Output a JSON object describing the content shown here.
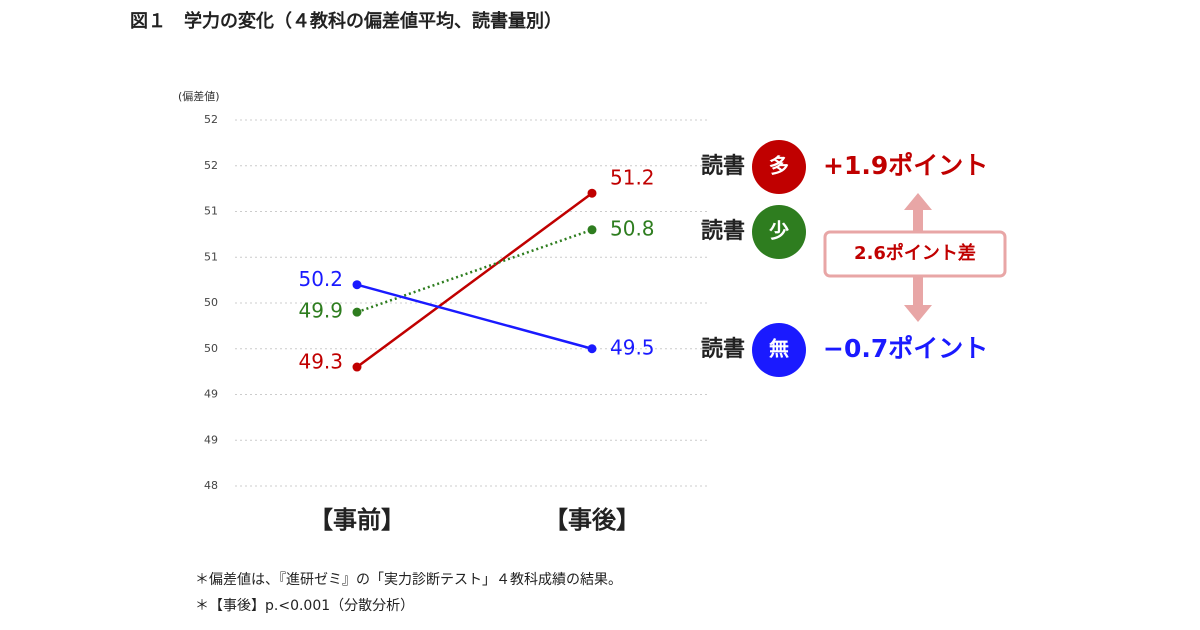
{
  "chart_data": {
    "type": "line",
    "title": "図１　学力の変化（４教科の偏差値平均、読書量別）",
    "y_label": "(偏差値)",
    "categories": [
      "【事前】",
      "【事後】"
    ],
    "ylim": [
      48,
      52
    ],
    "yticks": [
      {
        "value": 48,
        "label": "48"
      },
      {
        "value": 48.5,
        "label": "49"
      },
      {
        "value": 49,
        "label": "49"
      },
      {
        "value": 49.5,
        "label": "50"
      },
      {
        "value": 50,
        "label": "50"
      },
      {
        "value": 50.5,
        "label": "51"
      },
      {
        "value": 51,
        "label": "51"
      },
      {
        "value": 51.5,
        "label": "52"
      },
      {
        "value": 52,
        "label": "52"
      }
    ],
    "grid": true,
    "legend_title": "読書",
    "series": [
      {
        "name": "多",
        "color": "#c00000",
        "linestyle": "solid",
        "values": [
          49.3,
          51.2
        ],
        "change_label": "+1.9ポイント"
      },
      {
        "name": "少",
        "color": "#2e7d1f",
        "linestyle": "dotted",
        "values": [
          49.9,
          50.8
        ]
      },
      {
        "name": "無",
        "color": "#1a1aff",
        "linestyle": "solid",
        "values": [
          50.2,
          49.5
        ],
        "change_label": "−0.7ポイント"
      }
    ],
    "difference_label": "2.6ポイント差",
    "notes": [
      "＊偏差値は、『進研ゼミ』の「実力診断テスト」４教科成績の結果。",
      "＊【事後】p.<0.001（分散分析）"
    ]
  }
}
